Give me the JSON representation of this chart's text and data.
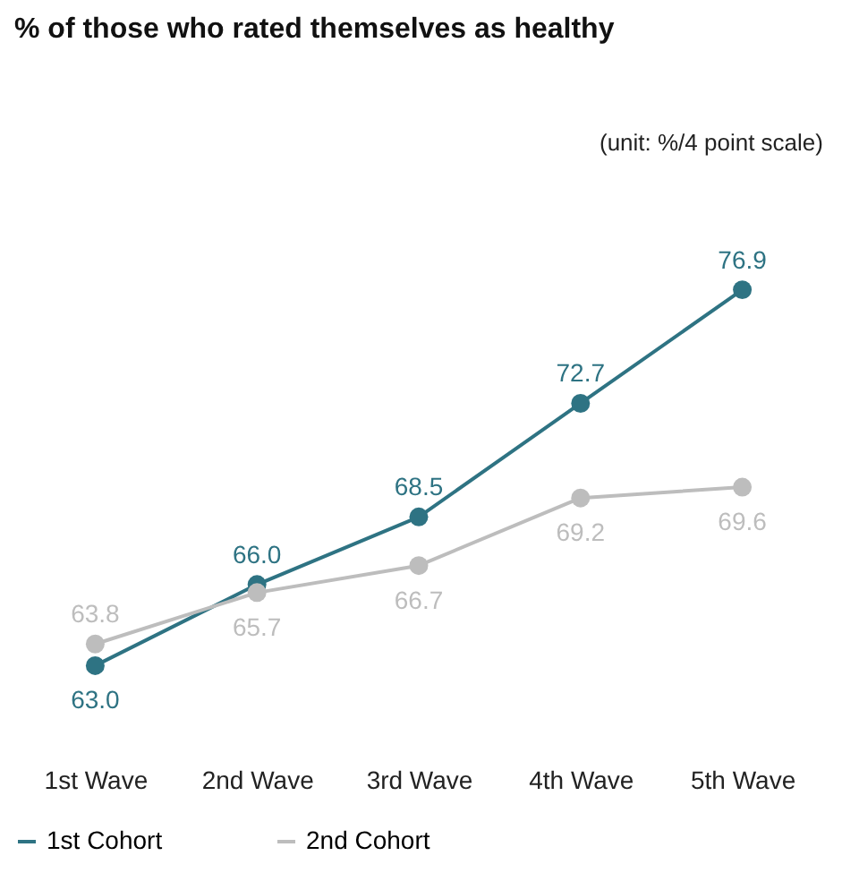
{
  "chart_data": {
    "type": "line",
    "title": "% of those who rated themselves as healthy",
    "annotations": [
      "(unit: %/4 point scale)"
    ],
    "categories": [
      "1st Wave",
      "2nd Wave",
      "3rd Wave",
      "4th Wave",
      "5th Wave"
    ],
    "series": [
      {
        "name": "1st Cohort",
        "color": "#2e7383",
        "values": [
          63.0,
          66.0,
          68.5,
          72.7,
          76.9
        ],
        "value_labels": [
          "63.0",
          "66.0",
          "68.5",
          "72.7",
          "76.9"
        ]
      },
      {
        "name": "2nd Cohort",
        "color": "#bdbdbd",
        "values": [
          63.8,
          65.7,
          66.7,
          69.2,
          69.6
        ],
        "value_labels": [
          "63.8",
          "65.7",
          "66.7",
          "69.2",
          "69.6"
        ]
      }
    ],
    "tick_labels": "x",
    "grid": false,
    "legend": "bottom",
    "marker": "circle",
    "line_style": "solid"
  }
}
